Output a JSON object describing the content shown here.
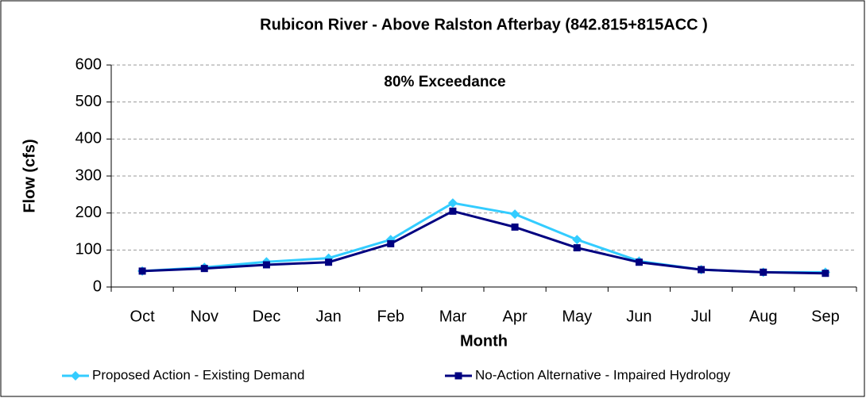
{
  "chart_data": {
    "type": "line",
    "title": "Rubicon River - Above Ralston Afterbay (842.815+815ACC )",
    "annotation": "80% Exceedance",
    "x_label": "Month",
    "y_label": "Flow (cfs)",
    "categories": [
      "Oct",
      "Nov",
      "Dec",
      "Jan",
      "Feb",
      "Mar",
      "Apr",
      "May",
      "Jun",
      "Jul",
      "Aug",
      "Sep"
    ],
    "series": [
      {
        "name": "Proposed Action - Existing Demand",
        "color": "#33ccff",
        "marker": "diamond",
        "values": [
          43,
          53,
          68,
          78,
          128,
          227,
          197,
          128,
          70,
          47,
          40,
          40
        ]
      },
      {
        "name": "No-Action Alternative - Impaired Hydrology",
        "color": "#000080",
        "marker": "square",
        "values": [
          43,
          50,
          60,
          67,
          117,
          205,
          162,
          106,
          67,
          47,
          40,
          37
        ]
      }
    ],
    "ylim": [
      0,
      600
    ],
    "yticks": [
      0,
      100,
      200,
      300,
      400,
      500,
      600
    ],
    "grid": true,
    "legend": "bottom"
  }
}
